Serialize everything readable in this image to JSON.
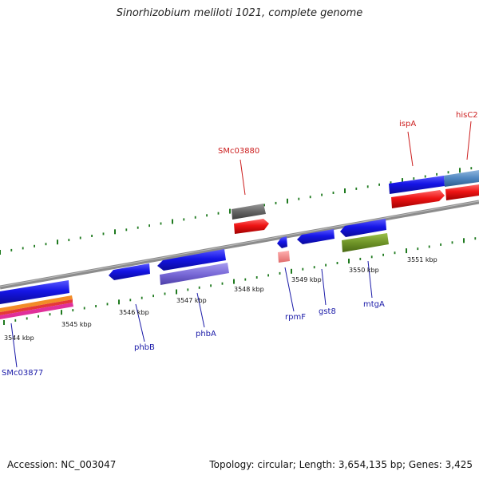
{
  "title": "Sinorhizobium meliloti 1021, complete genome",
  "footer": {
    "accession": "Accession: NC_003047",
    "topology": "Topology: circular; Length: 3,654,135 bp; Genes: 3,425"
  },
  "colors": {
    "genome_line": "#8c8c8c",
    "tick": "#1f7a1f",
    "forward_gene": "#1010e0",
    "reverse_gene": "#e01010",
    "gene_label_forward": "#1a1aa8",
    "gene_label_reverse": "#cc1f1f"
  },
  "scale": {
    "unit": "kbp",
    "labels": [
      "3544 kbp",
      "3545 kbp",
      "3546 kbp",
      "3547 kbp",
      "3548 kbp",
      "3549 kbp",
      "3550 kbp",
      "3551 kbp"
    ]
  },
  "gene_labels": [
    {
      "name": "SMc03877",
      "strand": "forward"
    },
    {
      "name": "phbB",
      "strand": "forward"
    },
    {
      "name": "phbA",
      "strand": "forward"
    },
    {
      "name": "SMc03880",
      "strand": "reverse"
    },
    {
      "name": "rpmF",
      "strand": "forward"
    },
    {
      "name": "gst8",
      "strand": "forward"
    },
    {
      "name": "mtgA",
      "strand": "forward"
    },
    {
      "name": "ispA",
      "strand": "reverse"
    },
    {
      "name": "hisC2",
      "strand": "reverse"
    }
  ]
}
